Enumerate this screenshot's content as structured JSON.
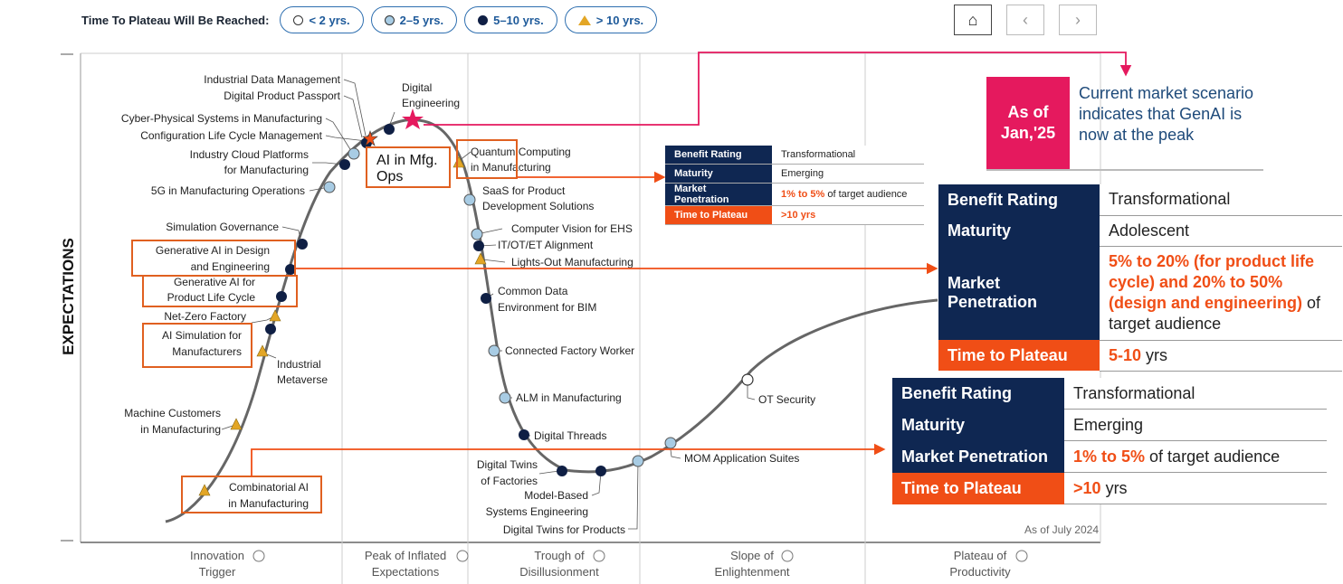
{
  "legend": {
    "title": "Time To Plateau Will Be Reached:",
    "items": [
      {
        "label": "< 2 yrs.",
        "symbol": "white-circle"
      },
      {
        "label": "2–5 yrs.",
        "symbol": "light-circle"
      },
      {
        "label": "5–10 yrs.",
        "symbol": "dark-circle"
      },
      {
        "label": "> 10 yrs.",
        "symbol": "triangle"
      }
    ]
  },
  "nav": {
    "home": "⌂",
    "back": "‹",
    "forward": "›"
  },
  "chart_data": {
    "type": "scatter",
    "ylabel": "EXPECTATIONS",
    "note": "As of July 2024",
    "phases": [
      {
        "line1": "Innovation",
        "line2": "Trigger"
      },
      {
        "line1": "Peak of Inflated",
        "line2": "Expectations"
      },
      {
        "line1": "Trough of",
        "line2": "Disillusionment"
      },
      {
        "line1": "Slope of",
        "line2": "Enlightenment"
      },
      {
        "line1": "Plateau of",
        "line2": "Productivity"
      }
    ],
    "technologies": [
      {
        "name": "Industrial Data Management",
        "plateau": "5–10 yrs."
      },
      {
        "name": "Digital Product Passport",
        "plateau": "5–10 yrs."
      },
      {
        "name": "Digital Engineering",
        "plateau": "5–10 yrs."
      },
      {
        "name": "Cyber-Physical Systems in Manufacturing",
        "plateau": "2–5 yrs."
      },
      {
        "name": "Configuration Life Cycle Management",
        "plateau": "5–10 yrs."
      },
      {
        "name": "Industry Cloud Platforms for Manufacturing",
        "plateau": "5–10 yrs."
      },
      {
        "name": "5G in Manufacturing Operations",
        "plateau": "2–5 yrs."
      },
      {
        "name": "Simulation Governance",
        "plateau": "5–10 yrs."
      },
      {
        "name": "Generative AI in Design and Engineering",
        "plateau": "5–10 yrs."
      },
      {
        "name": "Generative AI for Product Life Cycle",
        "plateau": "5–10 yrs."
      },
      {
        "name": "Net-Zero Factory",
        "plateau": "> 10 yrs."
      },
      {
        "name": "AI Simulation for Manufacturers",
        "plateau": "5–10 yrs."
      },
      {
        "name": "Industrial Metaverse",
        "plateau": "> 10 yrs."
      },
      {
        "name": "Machine Customers in Manufacturing",
        "plateau": "> 10 yrs."
      },
      {
        "name": "Combinatorial AI in Manufacturing",
        "plateau": "> 10 yrs."
      },
      {
        "name": "Quantum Computing in Manufacturing",
        "plateau": "> 10 yrs."
      },
      {
        "name": "SaaS for Product Development Solutions",
        "plateau": "2–5 yrs."
      },
      {
        "name": "Computer Vision for EHS",
        "plateau": "2–5 yrs."
      },
      {
        "name": "IT/OT/ET Alignment",
        "plateau": "5–10 yrs."
      },
      {
        "name": "Lights-Out Manufacturing",
        "plateau": "> 10 yrs."
      },
      {
        "name": "Common Data Environment for BIM",
        "plateau": "5–10 yrs."
      },
      {
        "name": "Connected Factory Worker",
        "plateau": "2–5 yrs."
      },
      {
        "name": "ALM in Manufacturing",
        "plateau": "2–5 yrs."
      },
      {
        "name": "Digital Threads",
        "plateau": "5–10 yrs."
      },
      {
        "name": "Digital Twins of Factories",
        "plateau": "5–10 yrs."
      },
      {
        "name": "Model-Based Systems Engineering",
        "plateau": "5–10 yrs."
      },
      {
        "name": "Digital Twins for Products",
        "plateau": "2–5 yrs."
      },
      {
        "name": "MOM Application Suites",
        "plateau": "2–5 yrs."
      },
      {
        "name": "OT Security",
        "plateau": "< 2 yrs."
      }
    ]
  },
  "labels": {
    "industrial_data_mgmt": "Industrial Data Management",
    "dpp": "Digital Product Passport",
    "de1": "Digital",
    "de2": "Engineering",
    "cps": "Cyber-Physical Systems in Manufacturing",
    "clm": "Configuration Life Cycle Management",
    "icp1": "Industry Cloud Platforms",
    "icp2": "for Manufacturing",
    "g5": "5G in Manufacturing Operations",
    "simgov": "Simulation Governance",
    "gade1": "Generative AI in Design",
    "gade2": "and Engineering",
    "gaplc1": "Generative AI for",
    "gaplc2": "Product Life Cycle",
    "nzf": "Net-Zero Factory",
    "aisim1": "AI Simulation for",
    "aisim2": "Manufacturers",
    "imeta1": "Industrial",
    "imeta2": "Metaverse",
    "mc1": "Machine Customers",
    "mc2": "in Manufacturing",
    "cai1": "Combinatorial AI",
    "cai2": "in Manufacturing",
    "qc1": "Quantum Computing",
    "qc2": "in Manufacturing",
    "saas1": "SaaS for Product",
    "saas2": "Development Solutions",
    "cv": "Computer Vision for EHS",
    "itot": "IT/OT/ET Alignment",
    "lom": "Lights-Out Manufacturing",
    "cde1": "Common Data",
    "cde2": "Environment for BIM",
    "cfw": "Connected Factory Worker",
    "alm": "ALM in Manufacturing",
    "dt": "Digital Threads",
    "dtf1": "Digital Twins",
    "dtf2": "of Factories",
    "mbse1": "Model-Based",
    "mbse2": "Systems Engineering",
    "dtp": "Digital Twins for Products",
    "mom": "MOM Application Suites",
    "ots": "OT Security"
  },
  "ai_box": {
    "line1": "AI in Mfg.",
    "line2": "Ops"
  },
  "callout": {
    "box": {
      "line1": "As of",
      "line2": "Jan,'25"
    },
    "text": "Current market scenario indicates that GenAI is now at the peak"
  },
  "small_table": {
    "benefit_k": "Benefit Rating",
    "benefit_v": "Transformational",
    "maturity_k": "Maturity",
    "maturity_v": "Emerging",
    "market_k": "Market Penetration",
    "market_hi": "1% to 5%",
    "market_rest": "of target audience",
    "plateau_k": "Time to Plateau",
    "plateau_v": ">10 yrs"
  },
  "big_table_1": {
    "benefit_k": "Benefit Rating",
    "benefit_v": "Transformational",
    "maturity_k": "Maturity",
    "maturity_v": "Adolescent",
    "market_k1": "Market",
    "market_k2": "Penetration",
    "market_hi": "5% to 20% (for product life cycle) and 20% to 50% (design and engineering)",
    "market_rest": "of target audience",
    "plateau_k": "Time to Plateau",
    "plateau_hi": "5-10",
    "plateau_rest": "yrs"
  },
  "big_table_2": {
    "benefit_k": "Benefit Rating",
    "benefit_v": "Transformational",
    "maturity_k": "Maturity",
    "maturity_v": "Emerging",
    "market_k": "Market Penetration",
    "market_hi": "1% to 5%",
    "market_rest": "of target audience",
    "plateau_k": "Time to Plateau",
    "plateau_hi": ">10",
    "plateau_rest": "yrs"
  },
  "colors": {
    "navy": "#0f2752",
    "orange": "#f04e16",
    "magenta": "#e5195e",
    "pill_border": "#2e6fb0",
    "triangle": "#e3a626"
  }
}
